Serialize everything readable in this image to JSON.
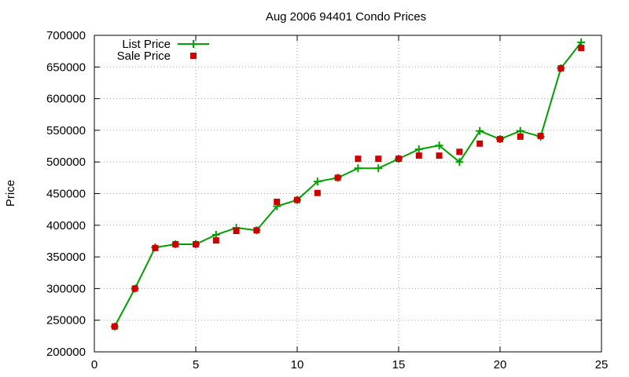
{
  "chart_data": {
    "type": "line",
    "title": "Aug 2006 94401 Condo Prices",
    "xlabel": "",
    "ylabel": "Price",
    "xlim": [
      0,
      25
    ],
    "ylim": [
      200000,
      700000
    ],
    "x_ticks": [
      0,
      5,
      10,
      15,
      20,
      25
    ],
    "y_ticks": [
      200000,
      250000,
      300000,
      350000,
      400000,
      450000,
      500000,
      550000,
      600000,
      650000,
      700000
    ],
    "grid": true,
    "legend_position": "top-left",
    "series": [
      {
        "name": "List Price",
        "style": "line-with-plus-markers",
        "color": "#00a000",
        "x": [
          1,
          2,
          3,
          4,
          5,
          6,
          7,
          8,
          9,
          10,
          11,
          12,
          13,
          14,
          15,
          16,
          17,
          18,
          19,
          20,
          21,
          22,
          23,
          24
        ],
        "values": [
          240000,
          300000,
          365000,
          370000,
          370000,
          385000,
          396000,
          392000,
          430000,
          440000,
          469000,
          475000,
          490000,
          490000,
          505000,
          520000,
          526000,
          500000,
          549000,
          536000,
          549000,
          540000,
          648000,
          689000
        ]
      },
      {
        "name": "Sale Price",
        "style": "square-markers",
        "color": "#cc0000",
        "x": [
          1,
          2,
          3,
          4,
          5,
          6,
          7,
          8,
          9,
          10,
          11,
          12,
          13,
          14,
          15,
          16,
          17,
          18,
          19,
          20,
          21,
          22,
          23,
          24
        ],
        "values": [
          240000,
          300000,
          364000,
          370000,
          370000,
          376000,
          391000,
          392000,
          437000,
          440000,
          451000,
          475000,
          505000,
          505000,
          505000,
          510000,
          510000,
          516000,
          529000,
          536000,
          540000,
          541000,
          648000,
          680000
        ]
      }
    ]
  }
}
